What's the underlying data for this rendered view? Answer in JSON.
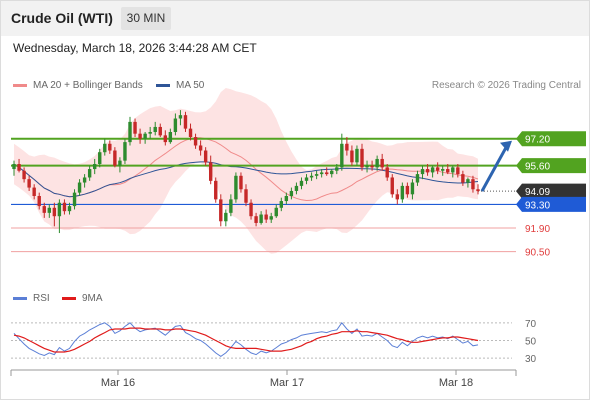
{
  "header": {
    "title": "Crude Oil (WTI)",
    "timeframe": "30 MIN"
  },
  "datetime": "Wednesday, March 18, 2026 3:44:28 AM CET",
  "legend": {
    "ma20": {
      "label": "MA 20 + Bollinger Bands",
      "color": "#f08a8a"
    },
    "ma50": {
      "label": "MA 50",
      "color": "#2f5597"
    },
    "rsi": {
      "label": "RSI",
      "color": "#5b7fd6"
    },
    "rsi9": {
      "label": "9MA",
      "color": "#e01b1b"
    }
  },
  "credit": "Research © 2026 Trading Central",
  "colors": {
    "up": "#2e8b2e",
    "down": "#c62828",
    "band": "#fde3e3",
    "resistance": "#52a320",
    "support": "#1f5bd6",
    "target": "#e03c3c",
    "last": "#333333",
    "arrow": "#2d64b0"
  },
  "chart_data": [
    {
      "type": "candlestick",
      "x_ticks": [
        "Mar 16",
        "Mar 17",
        "Mar 18"
      ],
      "levels": [
        {
          "value": 97.2,
          "label": "97.20",
          "kind": "resistance"
        },
        {
          "value": 95.6,
          "label": "95.60",
          "kind": "resistance"
        },
        {
          "value": 94.09,
          "label": "94.09",
          "kind": "last"
        },
        {
          "value": 93.3,
          "label": "93.30",
          "kind": "support"
        },
        {
          "value": 91.9,
          "label": "91.90",
          "kind": "target"
        },
        {
          "value": 90.5,
          "label": "90.50",
          "kind": "target"
        }
      ],
      "ylim": [
        90.0,
        99.5
      ],
      "ohlc": [
        [
          95.4,
          95.9,
          95.0,
          95.7
        ],
        [
          95.7,
          96.0,
          95.2,
          95.3
        ],
        [
          95.3,
          95.5,
          94.6,
          94.8
        ],
        [
          94.8,
          95.0,
          94.1,
          94.3
        ],
        [
          94.3,
          94.5,
          93.6,
          93.8
        ],
        [
          93.8,
          94.0,
          93.0,
          93.2
        ],
        [
          93.2,
          93.4,
          92.5,
          92.8
        ],
        [
          92.8,
          93.3,
          92.5,
          93.1
        ],
        [
          93.1,
          93.4,
          92.0,
          92.6
        ],
        [
          92.6,
          93.6,
          91.6,
          93.4
        ],
        [
          93.4,
          93.6,
          92.7,
          92.9
        ],
        [
          92.9,
          93.4,
          92.7,
          93.2
        ],
        [
          93.2,
          94.2,
          93.0,
          94.0
        ],
        [
          94.0,
          94.8,
          93.8,
          94.6
        ],
        [
          94.6,
          95.1,
          94.3,
          94.9
        ],
        [
          94.9,
          95.6,
          94.7,
          95.4
        ],
        [
          95.4,
          96.0,
          95.1,
          95.7
        ],
        [
          95.7,
          96.6,
          95.5,
          96.4
        ],
        [
          96.4,
          97.2,
          96.2,
          96.9
        ],
        [
          96.9,
          97.1,
          96.3,
          96.5
        ],
        [
          96.5,
          96.7,
          95.5,
          95.6
        ],
        [
          95.6,
          96.1,
          95.2,
          95.9
        ],
        [
          95.9,
          97.2,
          95.7,
          97.0
        ],
        [
          97.0,
          98.5,
          96.8,
          98.2
        ],
        [
          98.2,
          98.4,
          97.3,
          97.5
        ],
        [
          97.5,
          97.8,
          96.9,
          97.2
        ],
        [
          97.2,
          97.6,
          96.9,
          97.5
        ],
        [
          97.5,
          97.9,
          97.2,
          97.6
        ],
        [
          97.6,
          98.2,
          97.4,
          97.9
        ],
        [
          97.9,
          98.1,
          97.3,
          97.4
        ],
        [
          97.4,
          97.7,
          96.8,
          97.0
        ],
        [
          97.0,
          97.8,
          96.9,
          97.6
        ],
        [
          97.6,
          98.7,
          97.4,
          98.4
        ],
        [
          98.4,
          98.9,
          98.0,
          98.6
        ],
        [
          98.6,
          98.8,
          97.6,
          97.8
        ],
        [
          97.8,
          98.1,
          97.1,
          97.3
        ],
        [
          97.3,
          97.5,
          96.6,
          96.8
        ],
        [
          96.8,
          97.1,
          96.2,
          96.5
        ],
        [
          96.5,
          96.7,
          95.6,
          95.8
        ],
        [
          95.8,
          96.2,
          94.5,
          94.7
        ],
        [
          94.7,
          94.9,
          93.4,
          93.6
        ],
        [
          93.6,
          93.9,
          92.0,
          92.3
        ],
        [
          92.3,
          93.0,
          92.0,
          92.8
        ],
        [
          92.8,
          93.9,
          92.6,
          93.6
        ],
        [
          93.6,
          95.2,
          93.4,
          95.0
        ],
        [
          95.0,
          95.2,
          94.0,
          94.2
        ],
        [
          94.2,
          94.5,
          93.2,
          93.4
        ],
        [
          93.4,
          93.6,
          92.4,
          92.6
        ],
        [
          92.6,
          92.8,
          92.0,
          92.2
        ],
        [
          92.2,
          92.9,
          92.1,
          92.7
        ],
        [
          92.7,
          93.0,
          92.2,
          92.4
        ],
        [
          92.4,
          92.8,
          92.2,
          92.6
        ],
        [
          92.6,
          93.3,
          92.5,
          93.1
        ],
        [
          93.1,
          93.7,
          92.9,
          93.5
        ],
        [
          93.5,
          94.0,
          93.3,
          93.8
        ],
        [
          93.8,
          94.3,
          93.6,
          94.1
        ],
        [
          94.1,
          94.6,
          93.9,
          94.4
        ],
        [
          94.4,
          94.9,
          94.2,
          94.7
        ],
        [
          94.7,
          95.1,
          94.5,
          94.9
        ],
        [
          94.9,
          95.2,
          94.7,
          95.0
        ],
        [
          95.0,
          95.3,
          94.8,
          95.1
        ],
        [
          95.1,
          95.4,
          94.9,
          95.2
        ],
        [
          95.2,
          95.5,
          95.0,
          95.1
        ],
        [
          95.1,
          95.4,
          94.9,
          95.3
        ],
        [
          95.3,
          95.7,
          95.1,
          95.5
        ],
        [
          95.5,
          97.5,
          95.3,
          96.9
        ],
        [
          96.9,
          97.3,
          96.2,
          96.5
        ],
        [
          96.5,
          96.8,
          95.6,
          95.8
        ],
        [
          95.8,
          96.8,
          95.6,
          96.6
        ],
        [
          96.6,
          96.9,
          95.3,
          95.5
        ],
        [
          95.5,
          95.9,
          95.2,
          95.6
        ],
        [
          95.6,
          95.9,
          95.3,
          95.5
        ],
        [
          95.5,
          96.2,
          95.3,
          96.0
        ],
        [
          96.0,
          96.3,
          95.3,
          95.5
        ],
        [
          95.5,
          95.7,
          94.7,
          94.9
        ],
        [
          94.9,
          95.1,
          93.7,
          93.9
        ],
        [
          93.9,
          94.2,
          93.3,
          93.6
        ],
        [
          93.6,
          94.6,
          93.4,
          94.4
        ],
        [
          94.4,
          94.6,
          93.7,
          93.9
        ],
        [
          93.9,
          94.8,
          93.6,
          94.6
        ],
        [
          94.6,
          95.3,
          94.4,
          95.1
        ],
        [
          95.1,
          95.6,
          94.8,
          95.4
        ],
        [
          95.4,
          95.7,
          95.0,
          95.2
        ],
        [
          95.2,
          95.6,
          94.9,
          95.5
        ],
        [
          95.5,
          95.8,
          95.1,
          95.3
        ],
        [
          95.3,
          95.6,
          95.0,
          95.4
        ],
        [
          95.4,
          95.7,
          95.1,
          95.2
        ],
        [
          95.2,
          95.6,
          94.9,
          95.5
        ],
        [
          95.5,
          95.7,
          94.9,
          95.1
        ],
        [
          95.1,
          95.3,
          94.4,
          94.6
        ],
        [
          94.6,
          94.9,
          94.3,
          94.8
        ],
        [
          94.8,
          95.0,
          94.0,
          94.2
        ],
        [
          94.2,
          94.5,
          93.9,
          94.09
        ]
      ]
    },
    {
      "type": "line",
      "series": [
        {
          "name": "RSI"
        },
        {
          "name": "9MA"
        }
      ],
      "y_ticks": [
        30,
        50,
        70
      ],
      "ylim": [
        20,
        80
      ],
      "rsi": [
        58,
        52,
        46,
        41,
        38,
        35,
        33,
        36,
        34,
        42,
        38,
        41,
        49,
        55,
        58,
        62,
        65,
        68,
        70,
        66,
        58,
        61,
        66,
        70,
        64,
        60,
        62,
        63,
        64,
        60,
        56,
        61,
        66,
        67,
        59,
        56,
        52,
        50,
        46,
        41,
        36,
        32,
        36,
        42,
        49,
        45,
        40,
        36,
        34,
        38,
        36,
        38,
        42,
        46,
        48,
        51,
        53,
        56,
        57,
        58,
        59,
        60,
        59,
        61,
        62,
        70,
        63,
        58,
        63,
        55,
        56,
        55,
        58,
        54,
        50,
        44,
        42,
        48,
        44,
        49,
        53,
        55,
        53,
        55,
        53,
        54,
        52,
        55,
        51,
        47,
        49,
        44,
        45
      ],
      "ma9": [
        56,
        55,
        53,
        50,
        47,
        44,
        41,
        39,
        37,
        37,
        37,
        38,
        40,
        43,
        46,
        49,
        53,
        56,
        59,
        62,
        63,
        63,
        63,
        64,
        64,
        64,
        63,
        63,
        63,
        63,
        62,
        62,
        63,
        63,
        62,
        61,
        60,
        58,
        56,
        53,
        50,
        47,
        44,
        42,
        41,
        41,
        41,
        41,
        41,
        40,
        39,
        38,
        38,
        38,
        39,
        40,
        42,
        44,
        47,
        49,
        52,
        54,
        55,
        57,
        58,
        60,
        60,
        60,
        61,
        60,
        60,
        59,
        58,
        57,
        56,
        54,
        52,
        51,
        49,
        48,
        48,
        49,
        50,
        51,
        52,
        53,
        53,
        54,
        54,
        53,
        52,
        51,
        50
      ]
    }
  ]
}
